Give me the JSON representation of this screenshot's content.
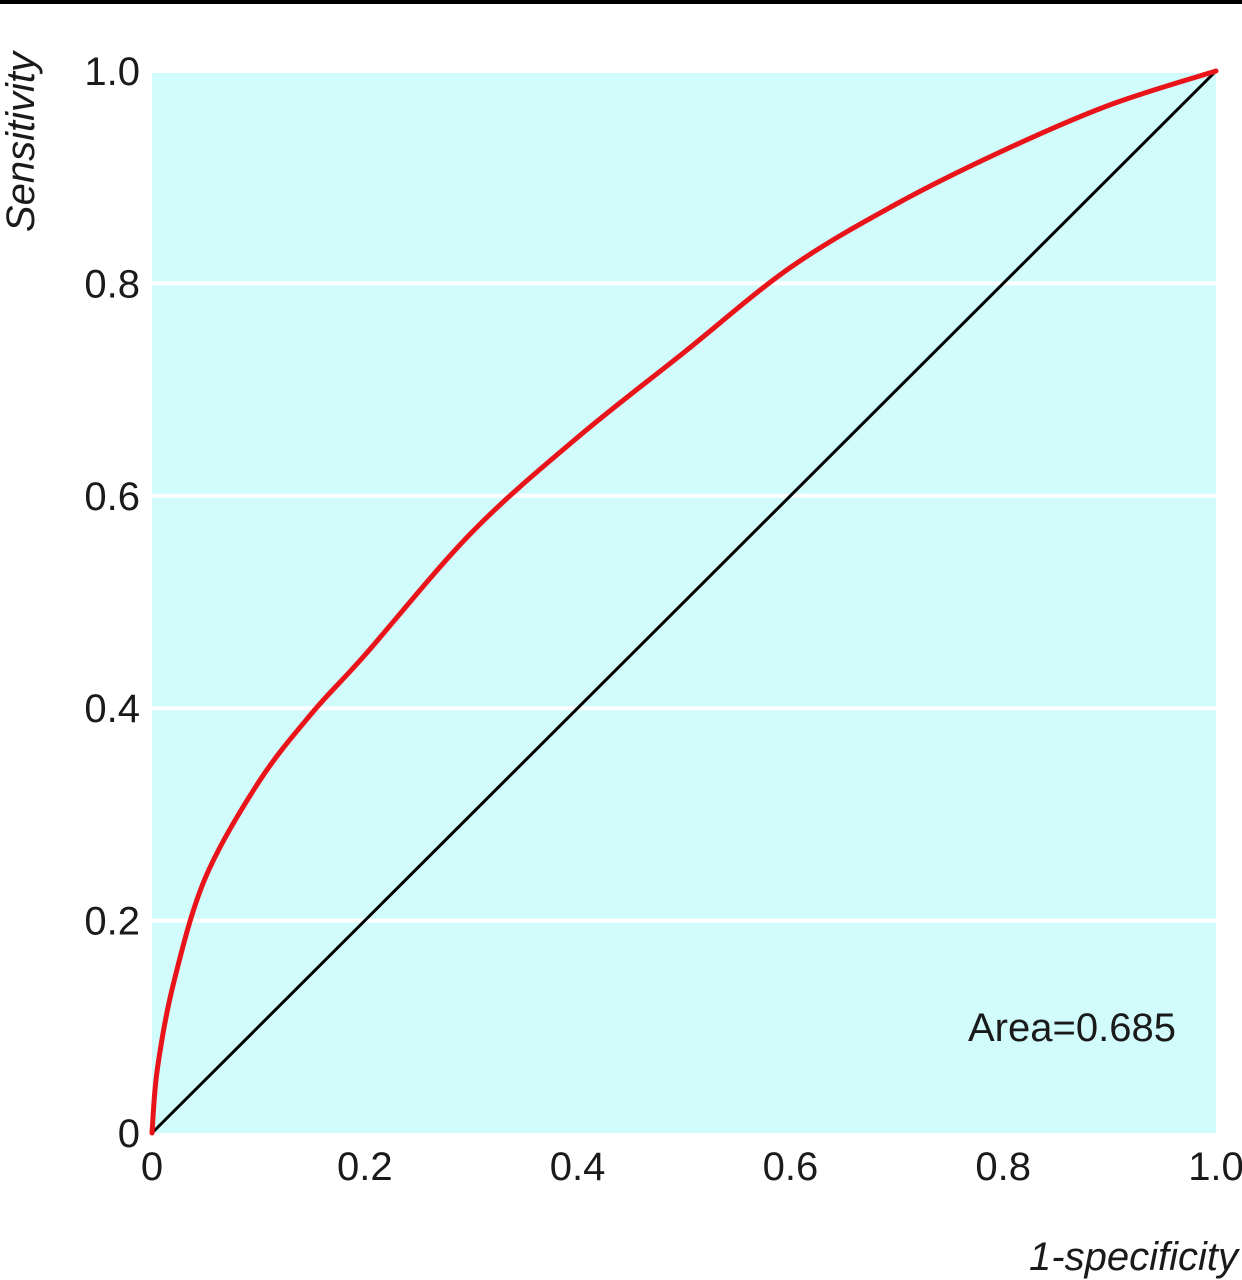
{
  "chart_data": {
    "type": "line",
    "xlabel": "1-specificity",
    "ylabel": "Sensitivity",
    "xlim": [
      0,
      1
    ],
    "ylim": [
      0,
      1
    ],
    "x_ticks": [
      0,
      0.2,
      0.4,
      0.6,
      0.8,
      1.0
    ],
    "x_tick_labels": [
      "0",
      "0.2",
      "0.4",
      "0.6",
      "0.8",
      "1.0"
    ],
    "y_ticks": [
      0,
      0.2,
      0.4,
      0.6,
      0.8,
      1.0
    ],
    "y_tick_labels": [
      "0",
      "0.2",
      "0.4",
      "0.6",
      "0.8",
      "1.0"
    ],
    "grid": "horizontal",
    "annotation": "Area=0.685",
    "colors": {
      "plot_background": "#d2fbfc",
      "grid": "#ffffff",
      "roc_curve": "#e8141a",
      "reference_line": "#000000",
      "top_rule": "#000000"
    },
    "series": [
      {
        "role": "roc-curve",
        "x": [
          0,
          0.005,
          0.02,
          0.05,
          0.1,
          0.15,
          0.2,
          0.3,
          0.4,
          0.5,
          0.6,
          0.7,
          0.8,
          0.9,
          1.0
        ],
        "y": [
          0,
          0.06,
          0.14,
          0.24,
          0.33,
          0.395,
          0.45,
          0.565,
          0.655,
          0.735,
          0.815,
          0.875,
          0.925,
          0.968,
          1.0
        ]
      },
      {
        "role": "reference-line",
        "x": [
          0,
          1
        ],
        "y": [
          0,
          1
        ]
      }
    ]
  }
}
